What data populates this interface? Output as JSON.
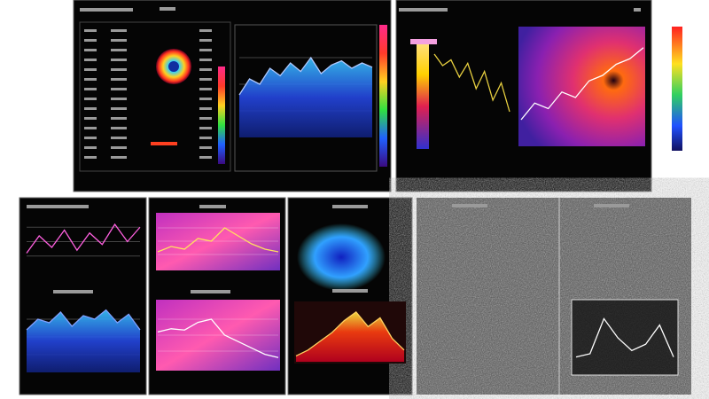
{
  "charts": [
    {
      "type": "area",
      "ylim": [
        0,
        100
      ],
      "values": [
        40,
        55,
        50,
        65,
        58,
        70,
        62,
        75,
        60,
        68,
        72,
        65,
        70,
        66
      ]
    },
    {
      "type": "line",
      "ylim": [
        0,
        100
      ],
      "values": [
        80,
        70,
        75,
        60,
        72,
        50,
        65,
        40,
        55,
        30
      ]
    },
    {
      "type": "line",
      "ylim": [
        0,
        100
      ],
      "values": [
        20,
        35,
        30,
        45,
        40,
        55,
        60,
        70,
        75,
        85
      ]
    },
    {
      "type": "line",
      "ylim": [
        0,
        100
      ],
      "values": [
        30,
        60,
        40,
        70,
        35,
        65,
        45,
        80,
        50,
        75
      ]
    },
    {
      "type": "area",
      "ylim": [
        0,
        100
      ],
      "values": [
        60,
        75,
        70,
        85,
        65,
        80,
        75,
        88,
        70,
        82,
        60
      ]
    },
    {
      "type": "line",
      "ylim": [
        0,
        100
      ],
      "values": [
        30,
        40,
        35,
        55,
        50,
        75,
        60,
        45,
        35,
        30
      ]
    },
    {
      "type": "line",
      "ylim": [
        0,
        100
      ],
      "values": [
        55,
        60,
        58,
        70,
        75,
        50,
        40,
        30,
        20,
        15
      ]
    },
    {
      "type": "area",
      "ylim": [
        0,
        100
      ],
      "values": [
        10,
        20,
        35,
        50,
        70,
        85,
        60,
        75,
        40,
        20
      ]
    },
    {
      "type": "line",
      "ylim": [
        0,
        100
      ],
      "values": [
        20,
        25,
        80,
        50,
        30,
        40,
        70,
        20
      ]
    }
  ]
}
